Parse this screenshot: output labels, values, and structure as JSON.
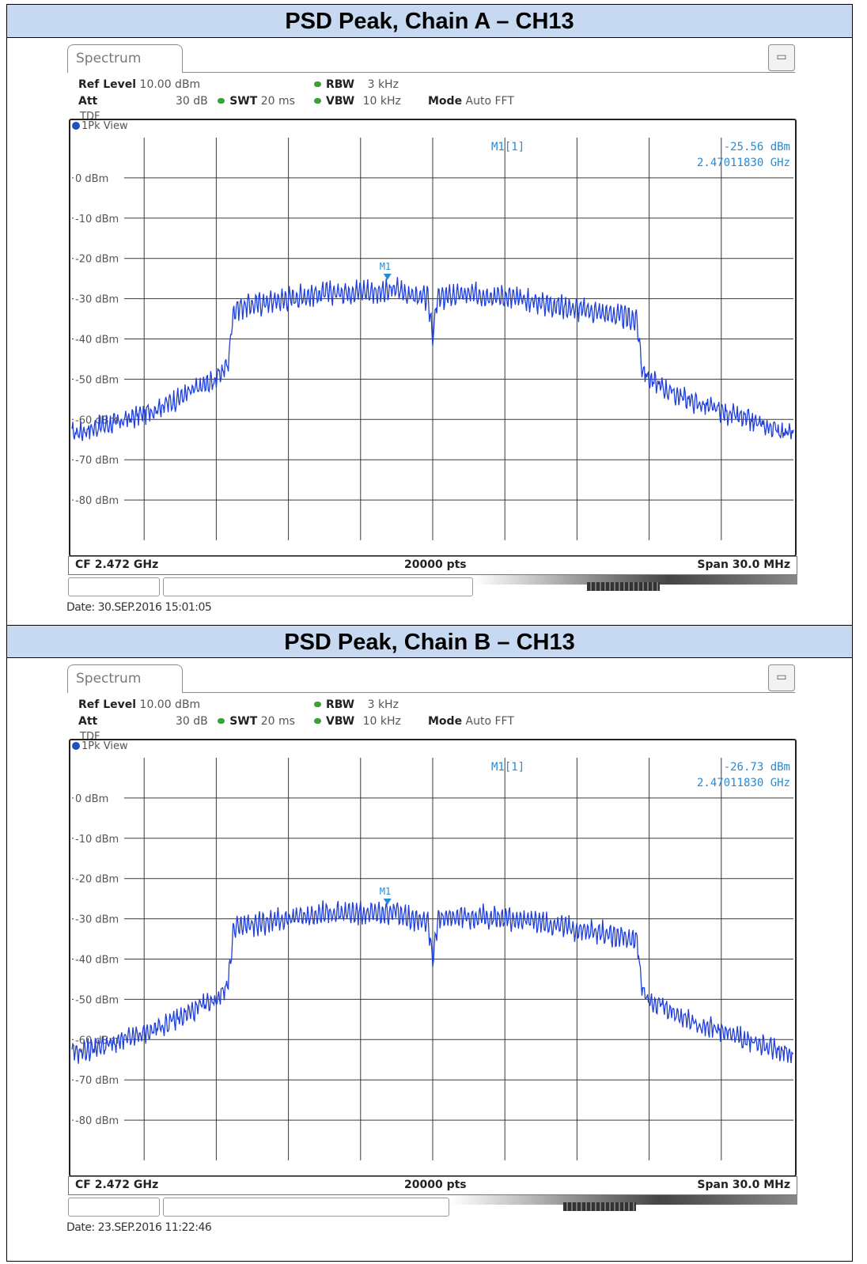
{
  "panels": [
    {
      "header": "PSD Peak, Chain A – CH13",
      "tab": "Spectrum",
      "ref_level_label": "Ref Level",
      "ref_level_value": "10.00 dBm",
      "att_label": "Att",
      "att_value": "30 dB",
      "swt_label": "SWT",
      "swt_value": "20 ms",
      "rbw_label": "RBW",
      "rbw_value": "3 kHz",
      "vbw_label": "VBW",
      "vbw_value": "10 kHz",
      "mode_label": "Mode",
      "mode_value": "Auto FFT",
      "tdf": "TDF",
      "view_label": "1Pk View",
      "marker_name": "M1[1]",
      "marker_level": "-25.56 dBm",
      "marker_freq": "2.47011830 GHz",
      "marker_tag": "M1",
      "cf": "CF 2.472 GHz",
      "pts": "20000 pts",
      "span": "Span 30.0 MHz",
      "date": "Date: 30.SEP.2016 15:01:05"
    },
    {
      "header": "PSD Peak, Chain B – CH13",
      "tab": "Spectrum",
      "ref_level_label": "Ref Level",
      "ref_level_value": "10.00 dBm",
      "att_label": "Att",
      "att_value": "30 dB",
      "swt_label": "SWT",
      "swt_value": "20 ms",
      "rbw_label": "RBW",
      "rbw_value": "3 kHz",
      "vbw_label": "VBW",
      "vbw_value": "10 kHz",
      "mode_label": "Mode",
      "mode_value": "Auto FFT",
      "tdf": "TDF",
      "view_label": "1Pk View",
      "marker_name": "M1[1]",
      "marker_level": "-26.73 dBm",
      "marker_freq": "2.47011830 GHz",
      "marker_tag": "M1",
      "cf": "CF 2.472 GHz",
      "pts": "20000 pts",
      "span": "Span 30.0 MHz",
      "date": "Date: 23.SEP.2016 11:22:46"
    }
  ],
  "colors": {
    "trace": "#1f3fd8",
    "marker": "#2a8ad0",
    "header_bg": "#c6d9f1"
  },
  "chart_data": [
    {
      "type": "line",
      "title": "",
      "xlabel": "",
      "ylabel": "",
      "yticks": [
        "0 dBm",
        "-10 dBm",
        "-20 dBm",
        "-30 dBm",
        "-40 dBm",
        "-50 dBm",
        "-60 dBm",
        "-70 dBm",
        "-80 dBm"
      ],
      "xlim": [
        2457.0,
        2487.0
      ],
      "ylim": [
        -90.0,
        10.0
      ],
      "grid": true,
      "series": [
        {
          "x": [
            2457.0,
            2458.0,
            2459.0,
            2460.0,
            2461.0,
            2462.0,
            2463.0,
            2463.5,
            2463.7,
            2464.0,
            2465.0,
            2466.0,
            2467.0,
            2468.0,
            2469.0,
            2470.0,
            2470.5,
            2471.0,
            2471.8,
            2472.0,
            2472.2,
            2473.0,
            2474.0,
            2475.0,
            2476.0,
            2477.0,
            2478.0,
            2479.0,
            2480.0,
            2480.5,
            2480.7,
            2481.0,
            2482.0,
            2483.0,
            2484.0,
            2485.0,
            2486.0,
            2487.0
          ],
          "y": [
            -63.5,
            -62.0,
            -60.5,
            -58.5,
            -56.0,
            -53.0,
            -50.0,
            -46.0,
            -33.0,
            -32.0,
            -31.0,
            -30.0,
            -29.0,
            -28.5,
            -28.0,
            -28.5,
            -27.5,
            -29.0,
            -30.0,
            -39.0,
            -30.0,
            -29.0,
            -29.0,
            -29.5,
            -30.5,
            -31.5,
            -32.5,
            -33.5,
            -34.5,
            -35.5,
            -47.0,
            -50.0,
            -53.5,
            -56.0,
            -58.0,
            -60.0,
            -62.0,
            -63.5
          ]
        }
      ],
      "marker": {
        "x": 2470.1183,
        "y": -25.56
      }
    },
    {
      "type": "line",
      "title": "",
      "xlabel": "",
      "ylabel": "",
      "yticks": [
        "0 dBm",
        "-10 dBm",
        "-20 dBm",
        "-30 dBm",
        "-40 dBm",
        "-50 dBm",
        "-60 dBm",
        "-70 dBm",
        "-80 dBm"
      ],
      "xlim": [
        2457.0,
        2487.0
      ],
      "ylim": [
        -90.0,
        10.0
      ],
      "grid": true,
      "series": [
        {
          "x": [
            2457.0,
            2458.0,
            2459.0,
            2460.0,
            2461.0,
            2462.0,
            2463.0,
            2463.5,
            2463.7,
            2464.0,
            2465.0,
            2466.0,
            2467.0,
            2468.0,
            2469.0,
            2470.0,
            2470.5,
            2471.0,
            2471.8,
            2472.0,
            2472.2,
            2473.0,
            2474.0,
            2475.0,
            2476.0,
            2477.0,
            2478.0,
            2479.0,
            2480.0,
            2480.5,
            2480.7,
            2481.0,
            2482.0,
            2483.0,
            2484.0,
            2485.0,
            2486.0,
            2487.0
          ],
          "y": [
            -63.5,
            -62.0,
            -60.5,
            -58.5,
            -56.0,
            -53.0,
            -50.0,
            -46.0,
            -33.0,
            -32.0,
            -31.0,
            -30.0,
            -29.0,
            -28.5,
            -28.5,
            -29.0,
            -28.0,
            -29.5,
            -30.5,
            -40.0,
            -30.5,
            -29.5,
            -29.5,
            -30.0,
            -30.5,
            -31.5,
            -32.5,
            -33.5,
            -34.5,
            -35.5,
            -47.0,
            -50.0,
            -53.5,
            -56.0,
            -58.0,
            -60.0,
            -62.0,
            -63.5
          ]
        }
      ],
      "marker": {
        "x": 2470.1183,
        "y": -26.73
      }
    }
  ]
}
